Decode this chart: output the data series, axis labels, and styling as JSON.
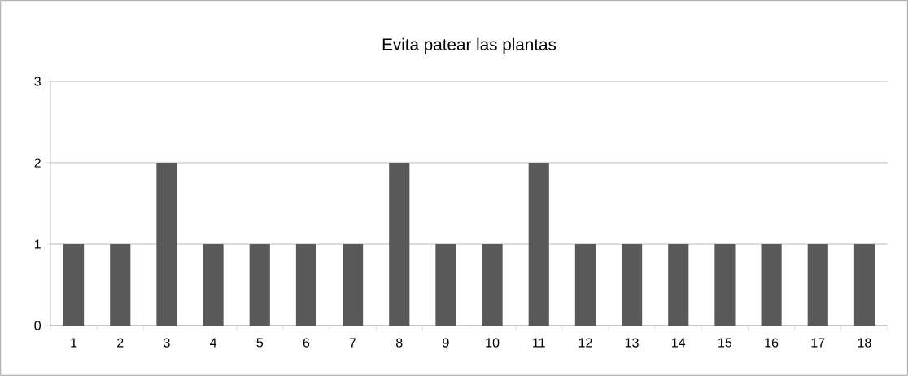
{
  "chart_data": {
    "type": "bar",
    "title": "Evita patear las plantas",
    "categories": [
      "1",
      "2",
      "3",
      "4",
      "5",
      "6",
      "7",
      "8",
      "9",
      "10",
      "11",
      "12",
      "13",
      "14",
      "15",
      "16",
      "17",
      "18"
    ],
    "values": [
      1,
      1,
      2,
      1,
      1,
      1,
      1,
      2,
      1,
      1,
      2,
      1,
      1,
      1,
      1,
      1,
      1,
      1
    ],
    "color": "#595959",
    "ylim": [
      0,
      3
    ],
    "yticks": [
      0,
      1,
      2,
      3
    ],
    "grid": "y"
  }
}
